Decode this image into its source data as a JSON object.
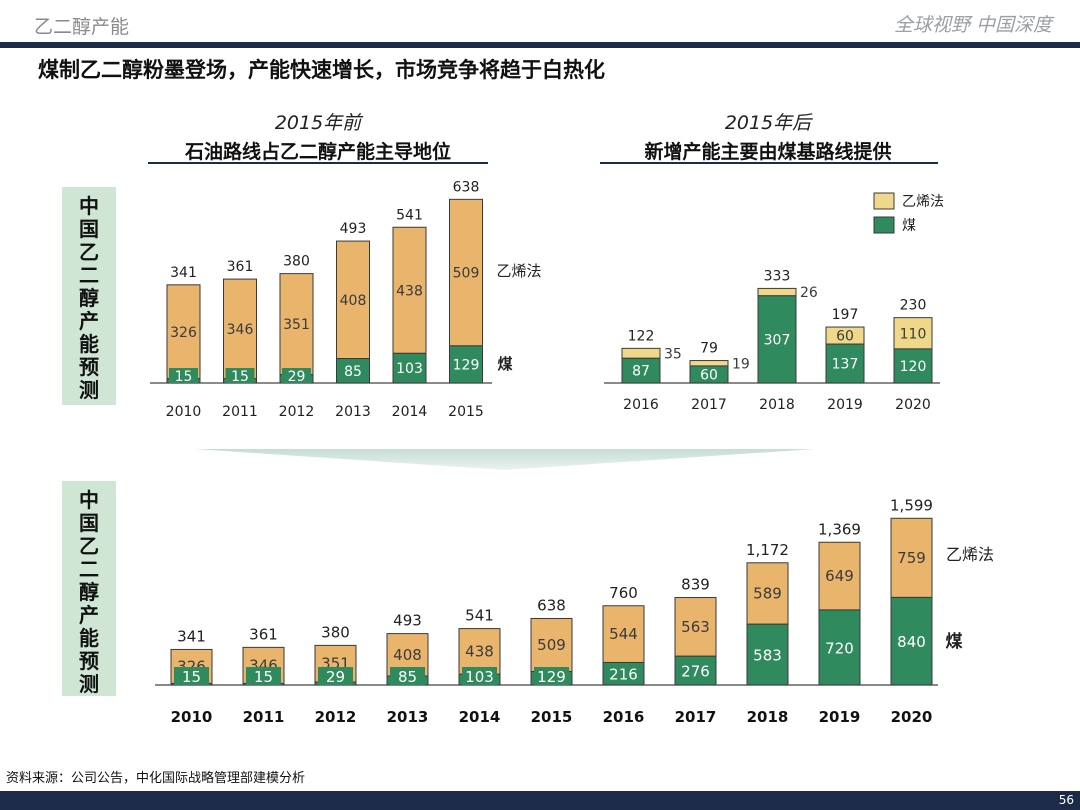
{
  "header": {
    "section": "乙二醇产能",
    "slogan": "全球视野 中国深度"
  },
  "headline": "煤制乙二醇粉墨登场，产能快速增长，市场竞争将趋于白热化",
  "left_panel": {
    "subtitle_italic": "2015年前",
    "subtitle_bold": "石油路线占乙二醇产能主导地位"
  },
  "right_panel": {
    "subtitle_italic": "2015年后",
    "subtitle_bold": "新增产能主要由煤基路线提供"
  },
  "side_label": "中国乙二醇产能预测",
  "source": "资料来源：公司公告，中化国际战略管理部建模分析",
  "page_number": "56",
  "colors": {
    "ethylene": "#e9b46c",
    "ethylene_light": "#f0d88a",
    "coal": "#2f8a5e",
    "navy": "#1b2b48",
    "label_bg": "#cfe6d4"
  },
  "chart_data": [
    {
      "type": "bar",
      "stacked": true,
      "id": "pre2015",
      "categories": [
        "2010",
        "2011",
        "2012",
        "2013",
        "2014",
        "2015"
      ],
      "series": [
        {
          "name": "煤",
          "values": [
            15,
            15,
            29,
            85,
            103,
            129
          ]
        },
        {
          "name": "乙烯法",
          "values": [
            326,
            346,
            351,
            408,
            438,
            509
          ]
        }
      ],
      "totals": [
        "341",
        "361",
        "380",
        "493",
        "541",
        "638"
      ],
      "ylim": [
        0,
        660
      ]
    },
    {
      "type": "bar",
      "stacked": true,
      "id": "post2015",
      "categories": [
        "2016",
        "2017",
        "2018",
        "2019",
        "2020"
      ],
      "series": [
        {
          "name": "煤",
          "values": [
            87,
            60,
            307,
            137,
            120
          ]
        },
        {
          "name": "乙烯法",
          "values": [
            35,
            19,
            26,
            60,
            110
          ]
        }
      ],
      "totals": [
        "122",
        "79",
        "333",
        "197",
        "230"
      ],
      "legend": {
        "position": "top-right",
        "entries": [
          "乙烯法",
          "煤"
        ]
      },
      "ylim": [
        0,
        345
      ]
    },
    {
      "type": "bar",
      "stacked": true,
      "id": "full",
      "categories": [
        "2010",
        "2011",
        "2012",
        "2013",
        "2014",
        "2015",
        "2016",
        "2017",
        "2018",
        "2019",
        "2020"
      ],
      "series": [
        {
          "name": "煤",
          "values": [
            15,
            15,
            29,
            85,
            103,
            129,
            216,
            276,
            583,
            720,
            840
          ]
        },
        {
          "name": "乙烯法",
          "values": [
            326,
            346,
            351,
            408,
            438,
            509,
            544,
            563,
            589,
            649,
            759
          ]
        }
      ],
      "totals": [
        "341",
        "361",
        "380",
        "493",
        "541",
        "638",
        "760",
        "839",
        "1,172",
        "1,369",
        "1,599"
      ],
      "ylim": [
        0,
        1640
      ]
    }
  ]
}
